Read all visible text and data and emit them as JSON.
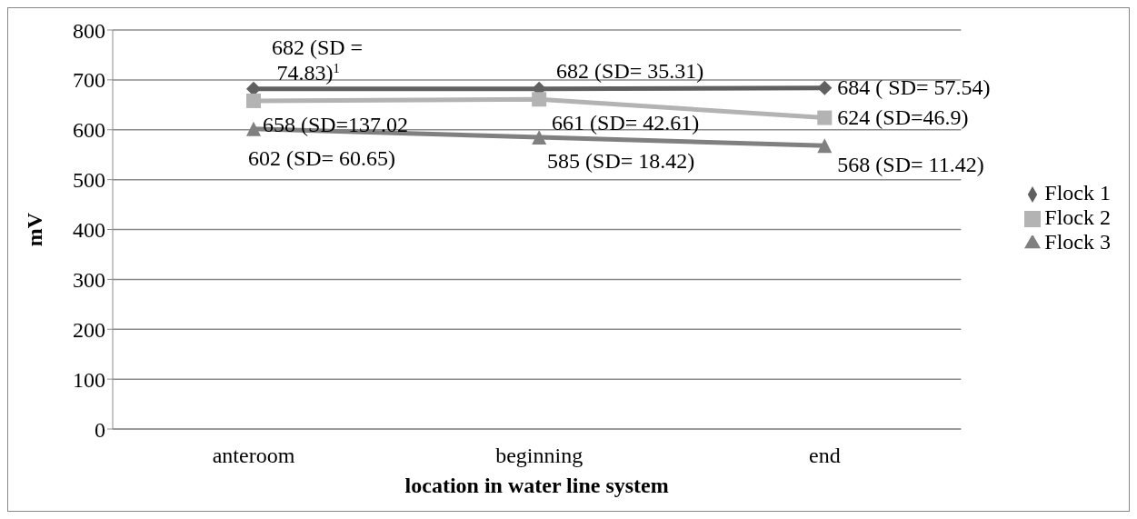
{
  "chart_data": {
    "type": "line",
    "xlabel": "location in water line system",
    "ylabel": "mV",
    "categories": [
      "anteroom",
      "beginning",
      "end"
    ],
    "series": [
      {
        "name": "Flock 1",
        "color": "#606060",
        "marker": "diamond",
        "values": [
          682,
          682,
          684
        ],
        "value_labels": [
          "682 (SD = 74.83)$^{1}$",
          "682 (SD= 35.31)",
          "684 ( SD= 57.54)"
        ]
      },
      {
        "name": "Flock 2",
        "color": "#b3b3b3",
        "marker": "square",
        "values": [
          658,
          661,
          624
        ],
        "value_labels": [
          "658  (SD=137.02",
          "661 (SD= 42.61)",
          "624 (SD=46.9)"
        ]
      },
      {
        "name": "Flock 3",
        "color": "#808080",
        "marker": "triangle",
        "values": [
          602,
          585,
          568
        ],
        "value_labels": [
          "602 (SD= 60.65)",
          "585 (SD= 18.42)",
          "568 (SD= 11.42)"
        ]
      }
    ],
    "ylim": [
      0,
      800
    ],
    "yticks": [
      0,
      100,
      200,
      300,
      400,
      500,
      600,
      700,
      800
    ],
    "grid": "y",
    "legend": "right",
    "line_style": "solid"
  }
}
